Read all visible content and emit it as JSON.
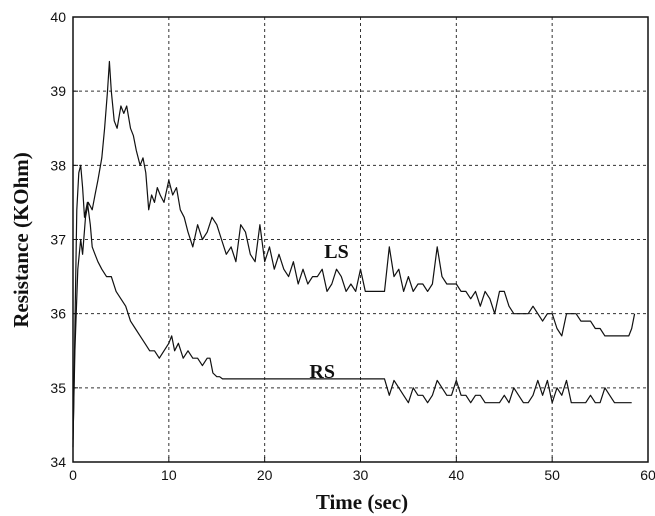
{
  "chart_data": {
    "type": "line",
    "title": "",
    "xlabel": "Time (sec)",
    "ylabel": "Resistance (KOhm)",
    "xlim": [
      0,
      60
    ],
    "ylim": [
      34,
      40
    ],
    "xticks": [
      "0",
      "10",
      "20",
      "30",
      "40",
      "50",
      "60"
    ],
    "yticks": [
      "34",
      "35",
      "36",
      "37",
      "38",
      "39",
      "40"
    ],
    "grid": true,
    "series": [
      {
        "name": "LS",
        "label_at": [
          27.5,
          36.75
        ],
        "x": [
          0,
          0.2,
          0.5,
          0.8,
          1.0,
          1.3,
          1.6,
          2.0,
          2.3,
          2.6,
          3.0,
          3.3,
          3.6,
          3.8,
          4.0,
          4.3,
          4.6,
          5.0,
          5.3,
          5.6,
          6.0,
          6.3,
          6.6,
          7.0,
          7.3,
          7.6,
          7.9,
          8.2,
          8.5,
          8.8,
          9.1,
          9.5,
          10.0,
          10.4,
          10.8,
          11.2,
          11.6,
          12.0,
          12.5,
          13.0,
          13.5,
          14.0,
          14.5,
          15.0,
          15.5,
          16.0,
          16.5,
          17.0,
          17.5,
          18.0,
          18.5,
          19.0,
          19.5,
          20.0,
          20.5,
          21.0,
          21.5,
          22.0,
          22.5,
          23.0,
          23.5,
          24.0,
          24.5,
          25.0,
          25.5,
          26.0,
          26.5,
          27.0,
          27.5,
          28.0,
          28.5,
          29.0,
          29.5,
          30.0,
          30.5,
          31.0,
          31.5,
          32.0,
          32.5,
          33.0,
          33.5,
          34.0,
          34.5,
          35.0,
          35.5,
          36.0,
          36.5,
          37.0,
          37.5,
          38.0,
          38.5,
          39.0,
          39.5,
          40.0,
          40.5,
          41.0,
          41.5,
          42.0,
          42.5,
          43.0,
          43.5,
          44.0,
          44.5,
          45.0,
          45.5,
          46.0,
          46.5,
          47.0,
          47.5,
          48.0,
          48.5,
          49.0,
          49.5,
          50.0,
          50.5,
          51.0,
          51.5,
          52.0,
          52.5,
          53.0,
          53.5,
          54.0,
          54.5,
          55.0,
          55.5,
          56.0,
          56.5,
          57.0,
          57.5,
          58.0,
          58.3,
          58.6
        ],
        "y": [
          34.3,
          35.5,
          36.6,
          37.0,
          36.8,
          37.3,
          37.5,
          37.4,
          37.6,
          37.8,
          38.1,
          38.5,
          39.0,
          39.4,
          39.0,
          38.6,
          38.5,
          38.8,
          38.7,
          38.8,
          38.5,
          38.4,
          38.2,
          38.0,
          38.1,
          37.9,
          37.4,
          37.6,
          37.5,
          37.7,
          37.6,
          37.5,
          37.8,
          37.6,
          37.7,
          37.4,
          37.3,
          37.1,
          36.9,
          37.2,
          37.0,
          37.1,
          37.3,
          37.2,
          37.0,
          36.8,
          36.9,
          36.7,
          37.2,
          37.1,
          36.8,
          36.7,
          37.2,
          36.7,
          36.9,
          36.6,
          36.8,
          36.6,
          36.5,
          36.7,
          36.4,
          36.6,
          36.4,
          36.5,
          36.5,
          36.6,
          36.3,
          36.4,
          36.6,
          36.5,
          36.3,
          36.4,
          36.3,
          36.6,
          36.3,
          36.3,
          36.3,
          36.3,
          36.3,
          36.9,
          36.5,
          36.6,
          36.3,
          36.5,
          36.3,
          36.4,
          36.4,
          36.3,
          36.4,
          36.9,
          36.5,
          36.4,
          36.4,
          36.4,
          36.3,
          36.3,
          36.2,
          36.3,
          36.1,
          36.3,
          36.2,
          36.0,
          36.3,
          36.3,
          36.1,
          36.0,
          36.0,
          36.0,
          36.0,
          36.1,
          36.0,
          35.9,
          36.0,
          36.0,
          35.8,
          35.7,
          36.0,
          36.0,
          36.0,
          35.9,
          35.9,
          35.9,
          35.8,
          35.8,
          35.7,
          35.7,
          35.7,
          35.7,
          35.7,
          35.7,
          35.8,
          36.0
        ]
      },
      {
        "name": "RS",
        "label_at": [
          26.0,
          35.13
        ],
        "x": [
          0,
          0.2,
          0.4,
          0.6,
          0.8,
          1.0,
          1.2,
          1.5,
          1.8,
          2.0,
          2.3,
          2.6,
          3.0,
          3.5,
          4.0,
          4.5,
          5.0,
          5.5,
          6.0,
          6.5,
          7.0,
          7.5,
          8.0,
          8.5,
          9.0,
          9.5,
          10.0,
          10.3,
          10.6,
          11.0,
          11.5,
          12.0,
          12.5,
          13.0,
          13.5,
          14.0,
          14.3,
          14.6,
          15.0,
          15.3,
          15.6,
          16.0,
          20.0,
          25.0,
          30.0,
          32.0,
          32.5,
          33.0,
          33.5,
          34.0,
          34.5,
          35.0,
          35.5,
          36.0,
          36.5,
          37.0,
          37.5,
          38.0,
          38.5,
          39.0,
          39.5,
          40.0,
          40.5,
          41.0,
          41.5,
          42.0,
          42.5,
          43.0,
          43.5,
          44.0,
          44.5,
          45.0,
          45.5,
          46.0,
          46.5,
          47.0,
          47.5,
          48.0,
          48.5,
          49.0,
          49.5,
          50.0,
          50.5,
          51.0,
          51.5,
          52.0,
          52.5,
          53.0,
          53.5,
          54.0,
          54.5,
          55.0,
          55.5,
          56.0,
          56.5,
          57.0,
          57.5,
          58.0,
          58.3
        ],
        "y": [
          34.2,
          35.8,
          37.4,
          37.9,
          38.0,
          37.7,
          37.3,
          37.5,
          37.2,
          36.9,
          36.8,
          36.7,
          36.6,
          36.5,
          36.5,
          36.3,
          36.2,
          36.1,
          35.9,
          35.8,
          35.7,
          35.6,
          35.5,
          35.5,
          35.4,
          35.5,
          35.6,
          35.7,
          35.5,
          35.6,
          35.4,
          35.5,
          35.4,
          35.4,
          35.3,
          35.4,
          35.4,
          35.2,
          35.15,
          35.15,
          35.12,
          35.12,
          35.12,
          35.12,
          35.12,
          35.12,
          35.12,
          34.9,
          35.1,
          35.0,
          34.9,
          34.8,
          35.0,
          34.9,
          34.9,
          34.8,
          34.9,
          35.1,
          35.0,
          34.9,
          34.9,
          35.1,
          34.9,
          34.9,
          34.8,
          34.9,
          34.9,
          34.8,
          34.8,
          34.8,
          34.8,
          34.9,
          34.8,
          35.0,
          34.9,
          34.8,
          34.8,
          34.9,
          35.1,
          34.9,
          35.1,
          34.8,
          35.0,
          34.9,
          35.1,
          34.8,
          34.8,
          34.8,
          34.8,
          34.9,
          34.8,
          34.8,
          35.0,
          34.9,
          34.8,
          34.8,
          34.8,
          34.8,
          34.8
        ]
      }
    ]
  }
}
